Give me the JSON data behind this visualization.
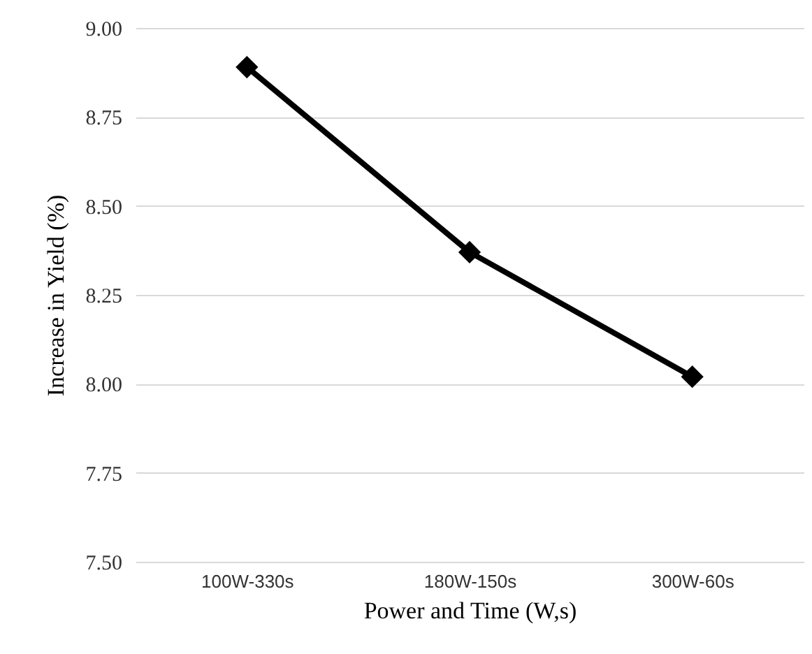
{
  "chart_data": {
    "type": "line",
    "xlabel": "Power and Time (W,s)",
    "ylabel": "Increase in Yield (%)",
    "categories": [
      "100W-330s",
      "180W-150s",
      "300W-60s"
    ],
    "series": [
      {
        "color": "#000000",
        "values": [
          8.89,
          8.37,
          8.02
        ]
      }
    ],
    "ylim": [
      7.5,
      9.0
    ],
    "yticks": [
      {
        "value": 7.5,
        "label": "7.50"
      },
      {
        "value": 7.75,
        "label": "7.75"
      },
      {
        "value": 8.0,
        "label": "8.00"
      },
      {
        "value": 8.25,
        "label": "8.25"
      },
      {
        "value": 8.5,
        "label": "8.50"
      },
      {
        "value": 8.75,
        "label": "8.75"
      },
      {
        "value": 9.0,
        "label": "9.00"
      }
    ],
    "grid": "y",
    "marker": "diamond",
    "line_style": "solid"
  }
}
